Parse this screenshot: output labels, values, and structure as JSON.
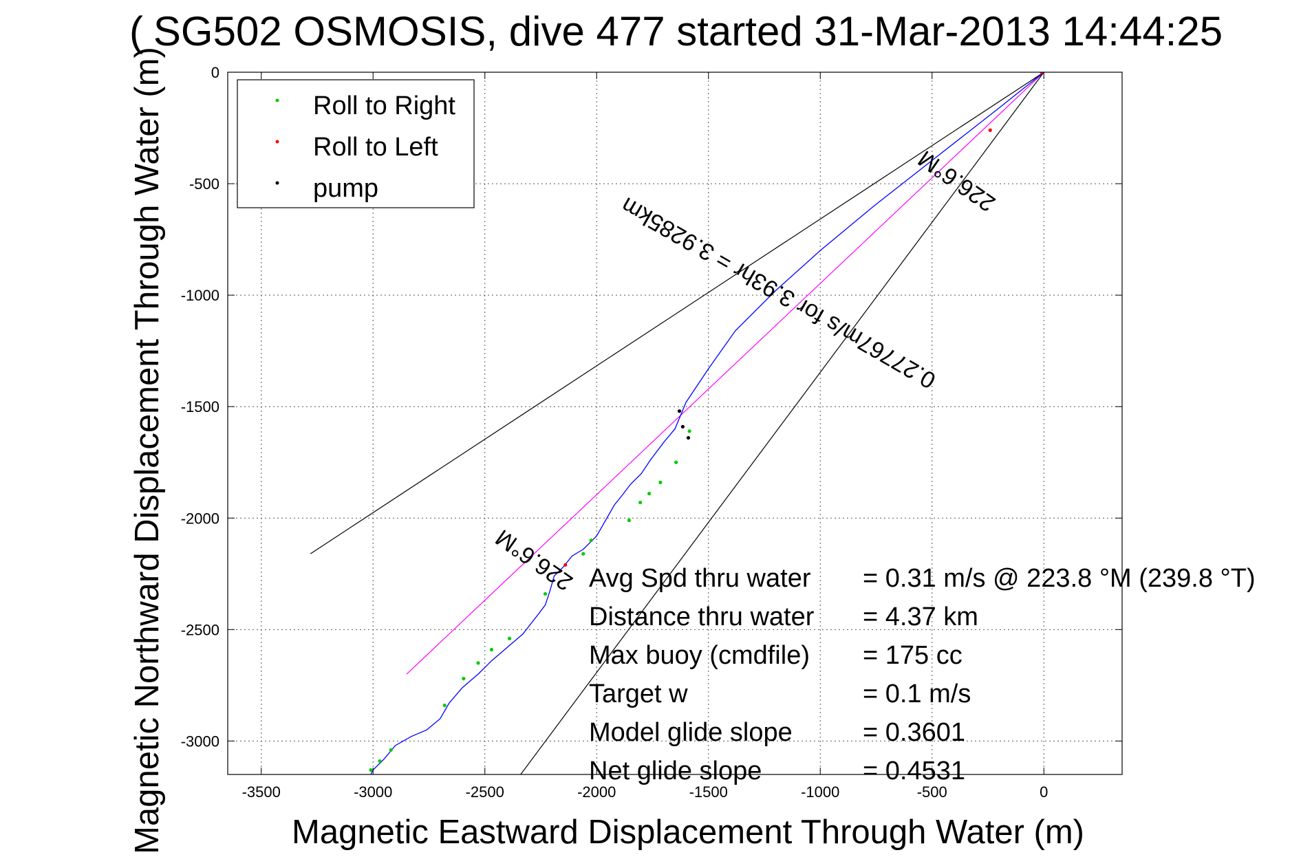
{
  "chart_data": {
    "type": "line",
    "title": "SG502 OSMOSIS, dive 477 started 31-Mar-2013 14:44:25",
    "title_overlap_glyph": "(",
    "xlabel": "Magnetic Eastward Displacement Through Water (m)",
    "ylabel": "Magnetic Northward Displacement Through Water (m)",
    "xlim": [
      -3650,
      350
    ],
    "ylim": [
      -3150,
      0
    ],
    "xticks": [
      -3500,
      -3000,
      -2500,
      -2000,
      -1500,
      -1000,
      -500,
      0
    ],
    "yticks": [
      0,
      -500,
      -1000,
      -1500,
      -2000,
      -2500,
      -3000
    ],
    "grid": true,
    "legend_position": "top-left",
    "legend": [
      {
        "label": "Roll to Right",
        "color": "#00cc00"
      },
      {
        "label": "Roll to Left",
        "color": "#ff0000"
      },
      {
        "label": "pump",
        "color": "#000000"
      }
    ],
    "series": [
      {
        "name": "track",
        "color": "#0000ff",
        "x": [
          0,
          -200,
          -480,
          -760,
          -1000,
          -1200,
          -1380,
          -1500,
          -1600,
          -1650,
          -1700,
          -1760,
          -1800,
          -1850,
          -1880,
          -1920,
          -1960,
          -2000,
          -2060,
          -2110,
          -2150,
          -2190,
          -2210,
          -2230,
          -2260,
          -2330,
          -2400,
          -2470,
          -2530,
          -2600,
          -2660,
          -2700,
          -2760,
          -2830,
          -2900,
          -2950,
          -3000,
          -3010
        ],
        "y": [
          0,
          -160,
          -380,
          -600,
          -800,
          -980,
          -1160,
          -1330,
          -1480,
          -1600,
          -1660,
          -1740,
          -1800,
          -1850,
          -1890,
          -1940,
          -2010,
          -2080,
          -2140,
          -2170,
          -2220,
          -2260,
          -2330,
          -2390,
          -2430,
          -2520,
          -2580,
          -2640,
          -2700,
          -2760,
          -2830,
          -2900,
          -2950,
          -2980,
          -3020,
          -3080,
          -3130,
          -3150
        ]
      }
    ],
    "roll_right_points": {
      "x": [
        -1585,
        -1645,
        -1715,
        -1765,
        -1805,
        -1855,
        -2025,
        -2060,
        -2230,
        -2390,
        -2470,
        -2530,
        -2595,
        -2680,
        -2920,
        -2970,
        -3010
      ],
      "y": [
        -1610,
        -1750,
        -1840,
        -1890,
        -1930,
        -2010,
        -2100,
        -2160,
        -2340,
        -2540,
        -2590,
        -2650,
        -2720,
        -2840,
        -3040,
        -3090,
        -3130
      ]
    },
    "roll_left_points": {
      "x": [
        -2140,
        -240,
        -10
      ],
      "y": [
        -2210,
        -260,
        0
      ]
    },
    "pump_points": {
      "x": [
        -1590,
        -1615,
        -1630
      ],
      "y": [
        -1640,
        -1590,
        -1520
      ]
    },
    "reference_lines": [
      {
        "name": "heading-line",
        "color": "#ff00ff",
        "x": [
          0,
          -2850
        ],
        "y": [
          0,
          -2700
        ]
      },
      {
        "name": "cone-left",
        "color": "#000000",
        "x": [
          0,
          -3280
        ],
        "y": [
          0,
          -2160
        ]
      },
      {
        "name": "cone-right",
        "color": "#000000",
        "x": [
          0,
          -2340
        ],
        "y": [
          0,
          -3150
        ]
      }
    ],
    "annotations": [
      {
        "text": "226.6°M",
        "x": -2260,
        "y": -2160
      },
      {
        "text": "226.6°M",
        "x": -370,
        "y": -460
      },
      {
        "text": "0.27767m/s for 3.93hr = 3.9285km",
        "x": -1170,
        "y": -960
      }
    ],
    "stats": [
      {
        "label": "Avg Spd thru water",
        "value": "=  0.31 m/s @ 223.8 °M (239.8 °T)"
      },
      {
        "label": "Distance thru water",
        "value": "=  4.37 km"
      },
      {
        "label": "Max buoy (cmdfile)",
        "value": "= 175 cc"
      },
      {
        "label": "Target w",
        "value": "= 0.1 m/s"
      },
      {
        "label": "Model glide slope",
        "value": "= 0.3601"
      },
      {
        "label": "Net glide slope",
        "value": "= 0.4531"
      }
    ]
  }
}
